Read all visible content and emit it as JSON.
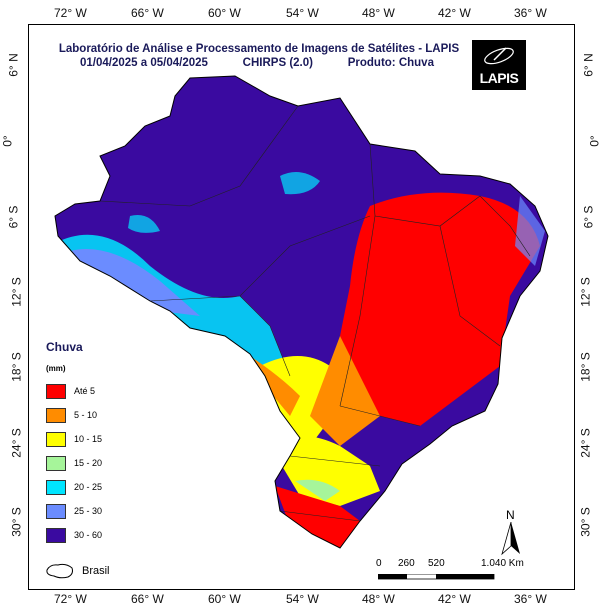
{
  "title": {
    "line1": "Laboratório de Análise e Processamento de Imagens de Satélites - LAPIS",
    "date": "01/04/2025  a  05/04/2025",
    "dataset": "CHIRPS (2.0)",
    "product": "Produto: Chuva"
  },
  "logo": {
    "text": "LAPIS"
  },
  "axes": {
    "lon_top": [
      "72° W",
      "66° W",
      "60° W",
      "54° W",
      "48° W",
      "42° W",
      "36° W"
    ],
    "lon_bottom": [
      "72° W",
      "66° W",
      "60° W",
      "54° W",
      "48° W",
      "42° W",
      "36° W"
    ],
    "lat_left": [
      "6° N",
      "0°",
      "6° S",
      "12° S",
      "18° S",
      "24° S",
      "30° S"
    ],
    "lat_right": [
      "6° N",
      "0°",
      "6° S",
      "12° S",
      "18° S",
      "24° S",
      "30° S"
    ]
  },
  "legend": {
    "title": "Chuva",
    "unit": "(mm)",
    "items": [
      {
        "label": "Até 5",
        "color": "#ff0000"
      },
      {
        "label": "5 - 10",
        "color": "#ff8c00"
      },
      {
        "label": "10 - 15",
        "color": "#ffff00"
      },
      {
        "label": "15 - 20",
        "color": "#a6f59a"
      },
      {
        "label": "20 - 25",
        "color": "#00e5ff"
      },
      {
        "label": "25 - 30",
        "color": "#6b8cff"
      },
      {
        "label": "30 - 60",
        "color": "#3a0aa0"
      }
    ],
    "boundary_label": "Brasil"
  },
  "scale": {
    "labels": [
      "0",
      "260",
      "520",
      "1.040 Km"
    ]
  },
  "north": {
    "label": "N"
  }
}
